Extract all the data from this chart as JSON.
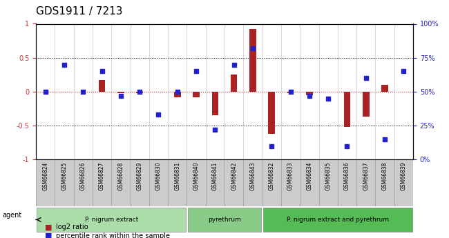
{
  "title": "GDS1911 / 7213",
  "samples": [
    "GSM66824",
    "GSM66825",
    "GSM66826",
    "GSM66827",
    "GSM66828",
    "GSM66829",
    "GSM66830",
    "GSM66831",
    "GSM66840",
    "GSM66841",
    "GSM66842",
    "GSM66843",
    "GSM66832",
    "GSM66833",
    "GSM66834",
    "GSM66835",
    "GSM66836",
    "GSM66837",
    "GSM66838",
    "GSM66839"
  ],
  "log2_ratio": [
    0.0,
    0.0,
    0.0,
    0.17,
    -0.02,
    -0.02,
    0.0,
    -0.08,
    -0.08,
    -0.35,
    0.25,
    0.92,
    -0.62,
    -0.02,
    -0.05,
    0.0,
    -0.52,
    -0.37,
    0.1,
    0.0
  ],
  "percentile": [
    50,
    70,
    50,
    65,
    47,
    50,
    33,
    50,
    65,
    22,
    70,
    82,
    10,
    50,
    47,
    45,
    10,
    60,
    15,
    65
  ],
  "groups": [
    {
      "label": "P. nigrum extract",
      "start": 0,
      "end": 8,
      "color": "#aaddaa"
    },
    {
      "label": "pyrethrum",
      "start": 8,
      "end": 12,
      "color": "#88cc88"
    },
    {
      "label": "P. nigrum extract and pyrethrum",
      "start": 12,
      "end": 20,
      "color": "#55bb55"
    }
  ],
  "bar_color": "#aa2222",
  "dot_color": "#2222cc",
  "hline_color": "#cc2222",
  "ylim_left": [
    -1,
    1
  ],
  "ylim_right": [
    0,
    100
  ],
  "yticks_left": [
    -1,
    -0.5,
    0,
    0.5,
    1
  ],
  "yticks_right": [
    0,
    25,
    50,
    75,
    100
  ],
  "ytick_labels_left": [
    "-1",
    "-0.5",
    "0",
    "0.5",
    "1"
  ],
  "ytick_labels_right": [
    "0%",
    "25%",
    "50%",
    "75%",
    "100%"
  ],
  "hline_dotted_vals": [
    0.5,
    -0.5
  ],
  "bg_color": "#ffffff",
  "plot_bg": "#ffffff"
}
